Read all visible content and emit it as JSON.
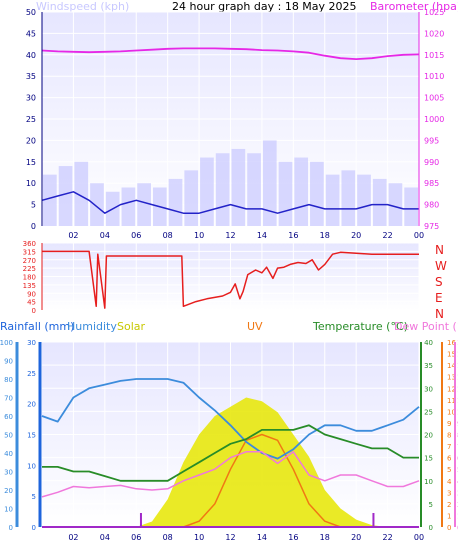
{
  "title": "24 hour graph day : 18 May 2025",
  "colors": {
    "panel_bg_top": "#e6e6ff",
    "panel_bg_bottom": "#ffffff",
    "grid": "#ffffff",
    "windspeed_label": "#c8c8ff",
    "wind_bars": "#c8c8ff",
    "wind_line": "#2323c8",
    "barometer": "#e628e6",
    "direction": "#e61e1e",
    "rainfall": "#1e64dc",
    "humidity": "#3c8cdc",
    "solar": "#e6e600",
    "uv": "#f07814",
    "temperature": "#288c28",
    "dewpoint": "#f078dc",
    "purple_mark": "#a028c8"
  },
  "top_labels": {
    "windspeed": "Windspeed (kph)",
    "barometer": "Barometer (hpa)"
  },
  "bottom_labels": {
    "rainfall": "Rainfall (mm)",
    "humidity": "Humidity",
    "solar": "Solar",
    "uv": "UV",
    "temperature": "Temperature (°C)",
    "dewpoint": "Dew Point (°C)"
  },
  "chart_data": [
    {
      "type": "line",
      "title": "24 hour graph day : 18 May 2025",
      "x_ticks": [
        "02",
        "04",
        "06",
        "08",
        "10",
        "12",
        "14",
        "16",
        "18",
        "20",
        "22",
        "00"
      ],
      "left_axis": {
        "label": "Windspeed (kph)",
        "ticks": [
          0,
          5,
          10,
          15,
          20,
          25,
          30,
          35,
          40,
          45,
          50
        ],
        "ylim": [
          0,
          50
        ]
      },
      "right_axis": {
        "label": "Barometer (hpa)",
        "ticks": [
          975,
          980,
          985,
          990,
          995,
          1000,
          1005,
          1010,
          1015,
          1020,
          1025
        ],
        "ylim": [
          975,
          1025
        ]
      },
      "hours": [
        0,
        1,
        2,
        3,
        4,
        5,
        6,
        7,
        8,
        9,
        10,
        11,
        12,
        13,
        14,
        15,
        16,
        17,
        18,
        19,
        20,
        21,
        22,
        23,
        24
      ],
      "series": [
        {
          "name": "Windspeed (kph)",
          "axis": "left",
          "style": "line",
          "values": [
            6,
            7,
            8,
            6,
            3,
            5,
            6,
            5,
            4,
            3,
            3,
            4,
            5,
            4,
            4,
            3,
            4,
            5,
            4,
            4,
            4,
            5,
            5,
            4,
            4
          ]
        },
        {
          "name": "Gust (kph)",
          "axis": "left",
          "style": "bars",
          "values": [
            12,
            14,
            15,
            10,
            8,
            9,
            10,
            9,
            11,
            13,
            16,
            17,
            18,
            17,
            20,
            15,
            16,
            15,
            12,
            13,
            12,
            11,
            10,
            9,
            8
          ]
        },
        {
          "name": "Barometer (hpa)",
          "axis": "right",
          "style": "line",
          "values": [
            1016.0,
            1015.8,
            1015.7,
            1015.6,
            1015.7,
            1015.8,
            1016.0,
            1016.2,
            1016.4,
            1016.5,
            1016.5,
            1016.5,
            1016.4,
            1016.3,
            1016.1,
            1016.0,
            1015.8,
            1015.5,
            1014.8,
            1014.2,
            1014.0,
            1014.2,
            1014.7,
            1015.0,
            1015.1
          ]
        }
      ]
    },
    {
      "type": "line",
      "title": "",
      "y_ticks": [
        0,
        45,
        90,
        135,
        180,
        225,
        270,
        315,
        360
      ],
      "ylim": [
        0,
        360
      ],
      "direction_labels": [
        "N",
        "W",
        "S",
        "E",
        "N"
      ],
      "hours": [
        0,
        1,
        2,
        3,
        3.45,
        3.55,
        4.0,
        4.1,
        5,
        6,
        7,
        8,
        8.9,
        9.0,
        9.8,
        10.5,
        11.5,
        12.0,
        12.3,
        12.6,
        12.8,
        13.1,
        13.6,
        14.0,
        14.3,
        14.7,
        15.0,
        15.4,
        15.8,
        16.3,
        16.8,
        17.2,
        17.6,
        18.0,
        18.5,
        19.0,
        20.0,
        21.0,
        22.0,
        23.0,
        24.0
      ],
      "series": [
        {
          "name": "Wind direction",
          "values": [
            315,
            315,
            315,
            315,
            20,
            300,
            10,
            290,
            290,
            290,
            290,
            290,
            290,
            20,
            45,
            60,
            75,
            95,
            140,
            60,
            100,
            190,
            215,
            200,
            230,
            170,
            225,
            230,
            245,
            255,
            250,
            270,
            215,
            245,
            300,
            310,
            305,
            300,
            300,
            300,
            300
          ]
        }
      ]
    },
    {
      "type": "line",
      "title": "",
      "x_ticks": [
        "02",
        "04",
        "06",
        "08",
        "10",
        "12",
        "14",
        "16",
        "18",
        "20",
        "22",
        "00"
      ],
      "axes": {
        "rainfall": [
          0,
          5,
          10,
          15,
          20,
          25,
          30
        ],
        "humidity": [
          0,
          10,
          20,
          30,
          40,
          50,
          60,
          70,
          80,
          90,
          100
        ],
        "temperature": [
          0,
          5,
          10,
          15,
          20,
          25,
          30,
          35,
          40
        ],
        "dewpoint": [
          0,
          1,
          2,
          3,
          4,
          5,
          6,
          7,
          8,
          9,
          10,
          11,
          12,
          13,
          14,
          15,
          16
        ]
      },
      "hours": [
        0,
        1,
        2,
        3,
        4,
        5,
        6,
        7,
        8,
        9,
        10,
        11,
        12,
        13,
        14,
        15,
        16,
        17,
        18,
        19,
        20,
        21,
        22,
        23,
        24
      ],
      "series": [
        {
          "name": "Humidity",
          "axis": "humidity",
          "values": [
            60,
            57,
            70,
            75,
            77,
            79,
            80,
            80,
            80,
            78,
            70,
            63,
            55,
            46,
            40,
            37,
            42,
            50,
            55,
            55,
            52,
            52,
            55,
            58,
            65
          ]
        },
        {
          "name": "Temperature",
          "axis": "temperature",
          "values": [
            13,
            13,
            12,
            12,
            11,
            10,
            10,
            10,
            10,
            12,
            14,
            16,
            18,
            19,
            21,
            21,
            21,
            22,
            20,
            19,
            18,
            17,
            17,
            15,
            15
          ]
        },
        {
          "name": "Dew Point",
          "axis": "dewpoint",
          "values": [
            2.6,
            3.0,
            3.5,
            3.4,
            3.5,
            3.6,
            3.3,
            3.2,
            3.3,
            4.0,
            4.5,
            5.0,
            6.0,
            6.5,
            6.5,
            5.5,
            6.5,
            4.5,
            4.0,
            4.5,
            4.5,
            4.0,
            3.5,
            3.5,
            4.0
          ]
        },
        {
          "name": "Solar",
          "axis": "humidity",
          "values": [
            0,
            0,
            0,
            0,
            0,
            0,
            0,
            3,
            15,
            35,
            50,
            60,
            65,
            70,
            68,
            62,
            50,
            38,
            20,
            10,
            4,
            1,
            0,
            0,
            0
          ]
        },
        {
          "name": "UV",
          "axis": "dewpoint",
          "values": [
            0,
            0,
            0,
            0,
            0,
            0,
            0,
            0,
            0,
            0,
            0.5,
            2,
            5,
            7.5,
            8.0,
            7.5,
            5.0,
            2.0,
            0.5,
            0,
            0,
            0,
            0,
            0,
            0
          ]
        },
        {
          "name": "Rainfall",
          "axis": "rainfall",
          "values": [
            0,
            0,
            0,
            0,
            0,
            0,
            0,
            0,
            0,
            0,
            0,
            0,
            0,
            0,
            0,
            0,
            0,
            0,
            0,
            0,
            0,
            0,
            0,
            0,
            0
          ]
        }
      ]
    }
  ]
}
